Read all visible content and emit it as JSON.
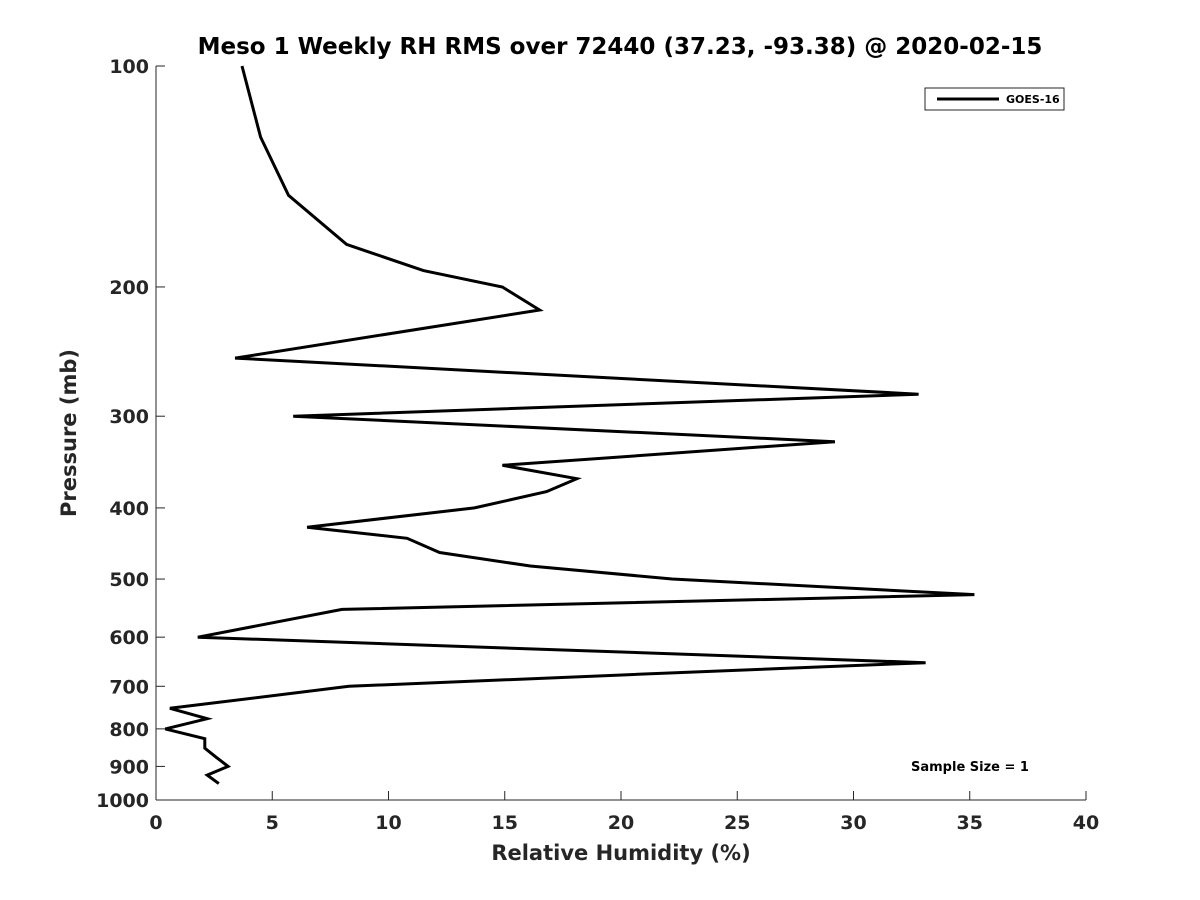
{
  "chart_data": {
    "type": "line",
    "title": "Meso 1 Weekly RH RMS over 72440 (37.23, -93.38) @ 2020-02-15",
    "xlabel": "Relative Humidity (%)",
    "ylabel": "Pressure (mb)",
    "xlim": [
      0,
      40
    ],
    "ylim": [
      1000,
      100
    ],
    "y_scale": "log",
    "y_reversed": true,
    "xticks": [
      0,
      5,
      10,
      15,
      20,
      25,
      30,
      35,
      40
    ],
    "yticks": [
      100,
      200,
      300,
      400,
      500,
      600,
      700,
      800,
      900,
      1000
    ],
    "grid": false,
    "legend_position": "top-right",
    "annotation": "Sample Size = 1",
    "series": [
      {
        "name": "GOES-16",
        "color": "#000000",
        "x": [
          3.7,
          4.5,
          5.7,
          8.2,
          11.5,
          14.9,
          16.5,
          3.4,
          32.8,
          5.9,
          29.2,
          14.9,
          18.1,
          16.8,
          13.7,
          6.5,
          10.8,
          12.2,
          16.1,
          22.2,
          35.2,
          8.0,
          1.8,
          33.1,
          20.3,
          8.3,
          0.6,
          2.2,
          0.4,
          2.1,
          2.1,
          2.6,
          3.1,
          2.2,
          2.7
        ],
        "y": [
          100,
          125,
          150,
          175,
          190,
          200,
          215,
          250,
          280,
          300,
          325,
          350,
          365,
          380,
          400,
          425,
          440,
          460,
          480,
          500,
          525,
          550,
          600,
          650,
          675,
          700,
          750,
          775,
          800,
          825,
          850,
          875,
          900,
          925,
          950
        ]
      }
    ]
  }
}
